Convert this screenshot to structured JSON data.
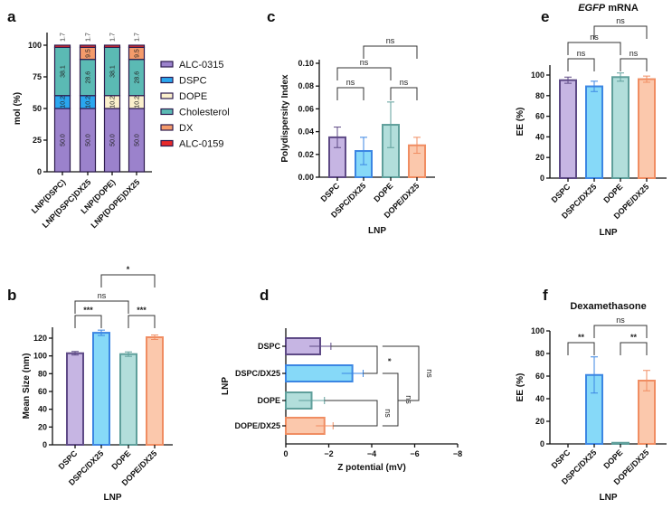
{
  "colors": {
    "DSPC": {
      "fill": "#c6b5e3",
      "stroke": "#5e4a86"
    },
    "DSPC/DX25": {
      "fill": "#86d9f8",
      "stroke": "#3b86e3"
    },
    "DOPE": {
      "fill": "#b2dedb",
      "stroke": "#5f9f9b"
    },
    "DOPE/DX25": {
      "fill": "#fbc8ac",
      "stroke": "#f08d62"
    },
    "components": {
      "ALC-0315": "#9b82cc",
      "DSPC": "#2aa6ef",
      "DOPE": "#fbf0cc",
      "Cholesterol": "#5bbab4",
      "DX": "#f59b6b",
      "ALC-0159": "#e8292b"
    },
    "outline": "#2c1a4d"
  },
  "chart_data": [
    {
      "panel": "a",
      "type": "bar",
      "stacked": true,
      "ylabel": "mol (%)",
      "ylim": [
        0,
        100
      ],
      "yticks": [
        0,
        25,
        50,
        75,
        100
      ],
      "categories": [
        "LNP(DSPC)",
        "LNP(DSPC)DX25",
        "LNP(DOPE)",
        "LNP(DOPE)DX25"
      ],
      "legend": "right",
      "series": [
        {
          "name": "ALC-0315",
          "values": [
            50.0,
            50.0,
            50.0,
            50.0
          ],
          "labels": [
            "50.0",
            "50.0",
            "50.0",
            "50.0"
          ]
        },
        {
          "name": "DSPC",
          "values": [
            10.2,
            10.2,
            0,
            0
          ],
          "labels": [
            "10.2",
            "10.2",
            "",
            ""
          ]
        },
        {
          "name": "DOPE",
          "values": [
            0,
            0,
            10.2,
            10.2
          ],
          "labels": [
            "",
            "",
            "10.2",
            "10.2"
          ]
        },
        {
          "name": "Cholesterol",
          "values": [
            38.1,
            28.6,
            38.1,
            28.6
          ],
          "labels": [
            "38.1",
            "28.6",
            "38.1",
            "28.6"
          ]
        },
        {
          "name": "DX",
          "values": [
            0,
            9.5,
            0,
            9.5
          ],
          "labels": [
            "",
            "9.5",
            "",
            "9.5"
          ]
        },
        {
          "name": "ALC-0159",
          "values": [
            1.7,
            1.7,
            1.7,
            1.7
          ],
          "labels": [
            "1.7",
            "1.7",
            "1.7",
            "1.7"
          ]
        }
      ]
    },
    {
      "panel": "b",
      "type": "bar",
      "xlabel": "LNP",
      "ylabel": "Mean Size (nm)",
      "ylim": [
        0,
        130
      ],
      "yticks": [
        0,
        20,
        40,
        60,
        80,
        100,
        120
      ],
      "categories": [
        "DSPC",
        "DSPC/DX25",
        "DOPE",
        "DOPE/DX25"
      ],
      "values": [
        103,
        126,
        102,
        121
      ],
      "errors": [
        2,
        3,
        2.5,
        2.5
      ],
      "comparisons": [
        {
          "from": 0,
          "to": 1,
          "label": "***"
        },
        {
          "from": 2,
          "to": 3,
          "label": "***"
        },
        {
          "from": 0,
          "to": 2,
          "label": "ns"
        },
        {
          "from": 1,
          "to": 3,
          "label": "*"
        }
      ]
    },
    {
      "panel": "c",
      "type": "bar",
      "xlabel": "LNP",
      "ylabel": "Polydispersity Index",
      "ylim": [
        0,
        0.1
      ],
      "yticks": [
        "0.00",
        "0.02",
        "0.04",
        "0.06",
        "0.08",
        "0.10"
      ],
      "categories": [
        "DSPC",
        "DSPC/DX25",
        "DOPE",
        "DOPE/DX25"
      ],
      "values": [
        0.035,
        0.023,
        0.046,
        0.028
      ],
      "errors": [
        0.009,
        0.012,
        0.02,
        0.007
      ],
      "comparisons": [
        {
          "from": 0,
          "to": 1,
          "label": "ns"
        },
        {
          "from": 2,
          "to": 3,
          "label": "ns"
        },
        {
          "from": 0,
          "to": 2,
          "label": "ns"
        },
        {
          "from": 1,
          "to": 3,
          "label": "ns"
        }
      ]
    },
    {
      "panel": "d",
      "type": "bar",
      "orientation": "horizontal",
      "xlabel": "Z potential (mV)",
      "ylabel": "LNP",
      "xlim": [
        0,
        -8
      ],
      "xticks": [
        "0",
        "−2",
        "−4",
        "−6",
        "−8"
      ],
      "categories": [
        "DSPC",
        "DSPC/DX25",
        "DOPE",
        "DOPE/DX25"
      ],
      "values": [
        -1.6,
        -3.1,
        -1.2,
        -1.8
      ],
      "errors": [
        0.5,
        0.5,
        0.6,
        0.4
      ],
      "comparisons": [
        {
          "from": 0,
          "to": 1,
          "label": "*"
        },
        {
          "from": 2,
          "to": 3,
          "label": "ns"
        },
        {
          "from": 1,
          "to": 3,
          "label": "ns"
        },
        {
          "from": 0,
          "to": 2,
          "label": "ns"
        }
      ]
    },
    {
      "panel": "e",
      "type": "bar",
      "title_italic": "EGFP",
      "title": " mRNA",
      "xlabel": "LNP",
      "ylabel": "EE (%)",
      "ylim": [
        0,
        110
      ],
      "yticks": [
        0,
        20,
        40,
        60,
        80,
        100
      ],
      "categories": [
        "DSPC",
        "DSPC/DX25",
        "DOPE",
        "DOPE/DX25"
      ],
      "values": [
        95,
        89,
        98,
        96
      ],
      "errors": [
        3,
        5,
        4,
        3
      ],
      "comparisons": [
        {
          "from": 0,
          "to": 1,
          "label": "ns"
        },
        {
          "from": 2,
          "to": 3,
          "label": "ns"
        },
        {
          "from": 0,
          "to": 2,
          "label": "ns"
        },
        {
          "from": 1,
          "to": 3,
          "label": "ns"
        }
      ]
    },
    {
      "panel": "f",
      "type": "bar",
      "title": "Dexamethasone",
      "xlabel": "LNP",
      "ylabel": "EE (%)",
      "ylim": [
        0,
        100
      ],
      "yticks": [
        0,
        20,
        40,
        60,
        80,
        100
      ],
      "categories": [
        "DSPC",
        "DSPC/DX25",
        "DOPE",
        "DOPE/DX25"
      ],
      "values": [
        0,
        61,
        1,
        56
      ],
      "errors": [
        0,
        16,
        0,
        9
      ],
      "comparisons": [
        {
          "from": 0,
          "to": 1,
          "label": "**"
        },
        {
          "from": 2,
          "to": 3,
          "label": "**"
        },
        {
          "from": 1,
          "to": 3,
          "label": "ns"
        }
      ]
    }
  ]
}
